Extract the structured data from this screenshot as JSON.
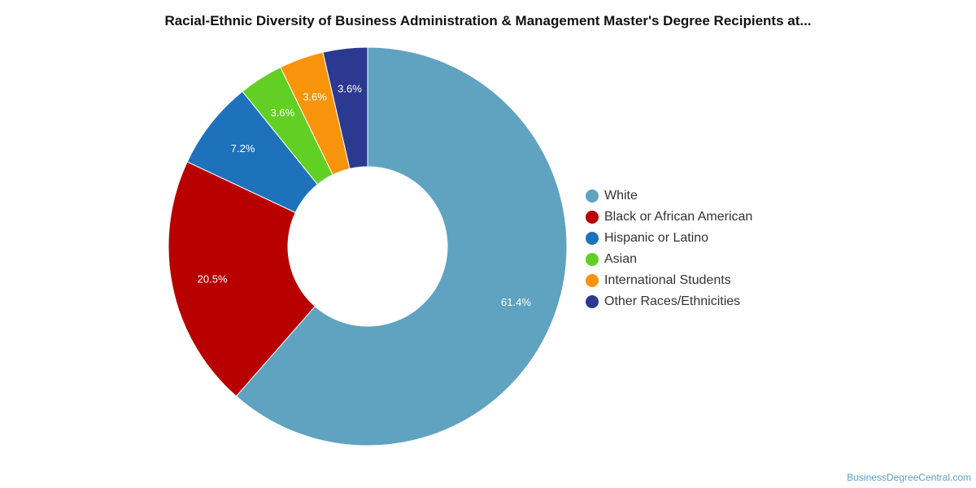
{
  "chart_data": {
    "type": "pie",
    "title": "Racial-Ethnic Diversity of Business Administration & Management Master's Degree Recipients at...",
    "donut": true,
    "legend_position": "right",
    "categories": [
      "White",
      "Black or African American",
      "Hispanic or Latino",
      "Asian",
      "International Students",
      "Other Races/Ethnicities"
    ],
    "values": [
      61.4,
      20.5,
      7.2,
      3.6,
      3.6,
      3.6
    ],
    "labels": [
      "61.4%",
      "20.5%",
      "7.2%",
      "3.6%",
      "3.6%",
      "3.6%"
    ],
    "colors": [
      "#5fa3c0",
      "#b80000",
      "#1e72bb",
      "#62cf25",
      "#f7940a",
      "#2c3990"
    ]
  },
  "footer": {
    "source": "BusinessDegreeCentral.com"
  }
}
